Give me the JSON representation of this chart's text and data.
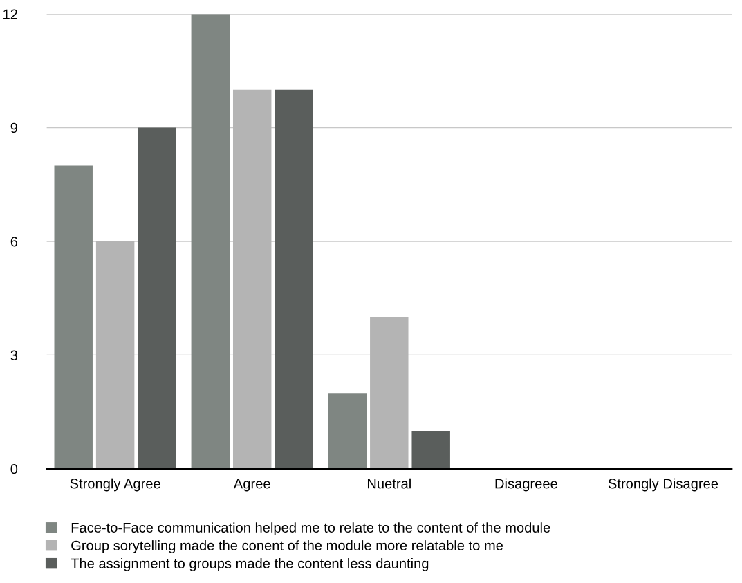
{
  "chart_data": {
    "type": "bar",
    "categories": [
      "Strongly Agree",
      "Agree",
      "Nuetral",
      "Disagreee",
      "Strongly Disagree"
    ],
    "series": [
      {
        "name": "Face-to-Face communication helped me to relate to the content of the module",
        "color": "#7f8682",
        "values": [
          8,
          12,
          2,
          0,
          0
        ]
      },
      {
        "name": "Group sorytelling made the conent of the module more relatable to me",
        "color": "#b4b4b4",
        "values": [
          6,
          10,
          4,
          0,
          0
        ]
      },
      {
        "name": "The assignment to groups made the content less daunting",
        "color": "#5a5e5c",
        "values": [
          9,
          10,
          1,
          0,
          0
        ]
      }
    ],
    "ylim": [
      0,
      12
    ],
    "yticks": [
      0,
      3,
      6,
      9,
      12
    ],
    "grid": "y",
    "legend": "bottom"
  }
}
